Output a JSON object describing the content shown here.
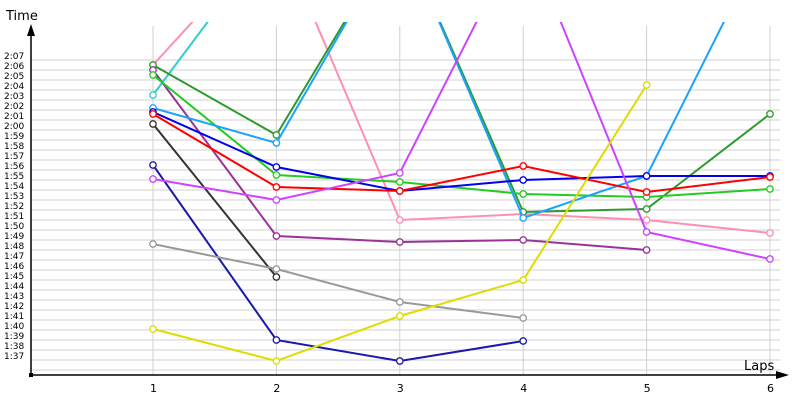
{
  "chart_data": {
    "type": "line",
    "title": "",
    "xlabel": "Laps",
    "ylabel": "Time",
    "x": [
      1,
      2,
      3,
      4,
      5,
      6
    ],
    "y_tick_labels": [
      "2:07",
      "2:06",
      "2:05",
      "2:04",
      "2:03",
      "2:02",
      "2:01",
      "2:00",
      "1:59",
      "1:58",
      "1:57",
      "1:56",
      "1:55",
      "1:54",
      "1:53",
      "1:52",
      "1:51",
      "1:50",
      "1:49",
      "1:48",
      "1:47",
      "1:46",
      "1:45",
      "1:44",
      "1:43",
      "1:42",
      "1:41",
      "1:40",
      "1:39",
      "1:38",
      "1:37"
    ],
    "ylim_seconds": [
      96,
      130
    ],
    "grid": true,
    "series": [
      {
        "name": "pink",
        "color": "#ff8fb0",
        "values": [
          126.5,
          140,
          111.0,
          111.6,
          111.0,
          109.7
        ]
      },
      {
        "name": "cyan",
        "color": "#33cccc",
        "values": [
          123.5,
          140,
          null,
          null,
          null,
          null
        ]
      },
      {
        "name": "dark-green",
        "color": "#2e9a2e",
        "values": [
          126.5,
          119.5,
          140,
          111.8,
          112.1,
          121.6
        ]
      },
      {
        "name": "dark-magenta",
        "color": "#993399",
        "values": [
          126.0,
          109.4,
          108.8,
          109.0,
          108.0,
          null
        ]
      },
      {
        "name": "green",
        "color": "#22cc22",
        "values": [
          125.5,
          115.5,
          114.8,
          113.6,
          113.3,
          114.1
        ]
      },
      {
        "name": "sky-blue",
        "color": "#1aa3ff",
        "values": [
          122.2,
          118.7,
          140,
          111.2,
          115.4,
          140
        ]
      },
      {
        "name": "blue",
        "color": "#0000ee",
        "values": [
          121.8,
          116.3,
          113.9,
          115.0,
          115.4,
          115.4
        ]
      },
      {
        "name": "red",
        "color": "#ff0000",
        "values": [
          121.6,
          114.3,
          113.9,
          116.4,
          113.8,
          115.3
        ]
      },
      {
        "name": "black",
        "color": "#333333",
        "values": [
          120.6,
          105.3,
          null,
          null,
          null,
          null
        ]
      },
      {
        "name": "navy",
        "color": "#1a1aaa",
        "values": [
          116.5,
          99.0,
          96.9,
          98.9,
          null,
          null
        ]
      },
      {
        "name": "violet",
        "color": "#cc44ff",
        "values": [
          115.1,
          113.0,
          115.7,
          140,
          109.8,
          107.1
        ]
      },
      {
        "name": "gray",
        "color": "#999999",
        "values": [
          108.6,
          106.1,
          102.8,
          101.2,
          null,
          null
        ]
      },
      {
        "name": "yellow",
        "color": "#dddd00",
        "values": [
          100.1,
          96.9,
          101.4,
          105.0,
          124.5,
          null
        ]
      }
    ]
  }
}
